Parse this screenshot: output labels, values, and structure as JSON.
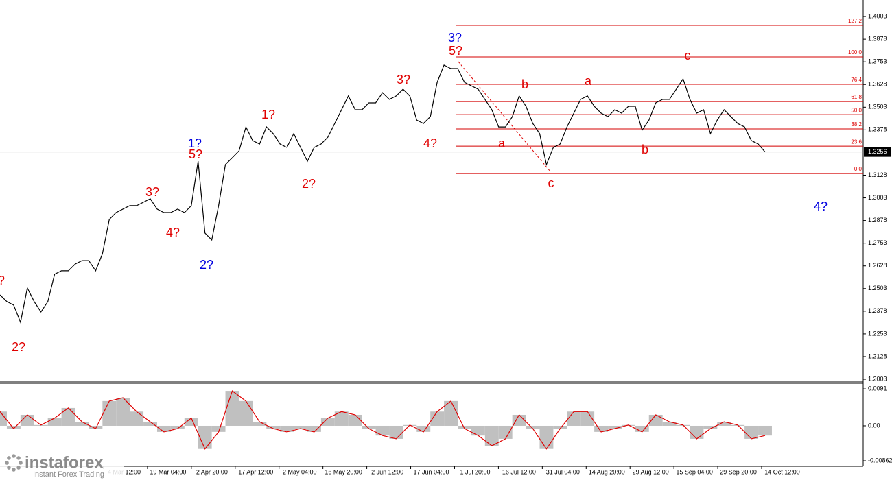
{
  "chart_data": [
    {
      "type": "line",
      "color": "#000000",
      "values": [
        1.2468,
        1.2431,
        1.2412,
        1.2317,
        1.2506,
        1.2431,
        1.2374,
        1.2431,
        1.2582,
        1.2601,
        1.2601,
        1.2638,
        1.2657,
        1.2657,
        1.2601,
        1.2695,
        1.2884,
        1.2922,
        1.2941,
        1.296,
        1.296,
        1.2979,
        1.2998,
        1.2941,
        1.2922,
        1.2922,
        1.2941,
        1.2922,
        1.296,
        1.3205,
        1.2809,
        1.2771,
        1.296,
        1.3187,
        1.3224,
        1.3262,
        1.3394,
        1.3319,
        1.33,
        1.3394,
        1.3357,
        1.33,
        1.3281,
        1.3357,
        1.3281,
        1.3205,
        1.3281,
        1.33,
        1.3338,
        1.3413,
        1.3489,
        1.3565,
        1.3489,
        1.3489,
        1.3527,
        1.3527,
        1.3583,
        1.3546,
        1.3565,
        1.3602,
        1.3565,
        1.3432,
        1.3413,
        1.3451,
        1.364,
        1.3735,
        1.3716,
        1.3716,
        1.364,
        1.3621,
        1.3602,
        1.3546,
        1.3489,
        1.3394,
        1.3394,
        1.3451,
        1.3565,
        1.3508,
        1.3413,
        1.3357,
        1.3187,
        1.3281,
        1.33,
        1.3394,
        1.347,
        1.3546,
        1.3565,
        1.3508,
        1.347,
        1.3451,
        1.3489,
        1.347,
        1.3508,
        1.3508,
        1.3376,
        1.3432,
        1.3527,
        1.3546,
        1.3546,
        1.3602,
        1.3659,
        1.3546,
        1.347,
        1.3489,
        1.3357,
        1.3432,
        1.3489,
        1.3451,
        1.3413,
        1.3394,
        1.3319,
        1.33,
        1.3256
      ],
      "ylim": [
        1.1988,
        1.4094
      ],
      "yticks": [
        1.4003,
        1.3878,
        1.3753,
        1.3628,
        1.3503,
        1.3378,
        1.3128,
        1.3003,
        1.2878,
        1.2753,
        1.2628,
        1.2503,
        1.2378,
        1.2253,
        1.2128,
        1.2003
      ],
      "current_price": 1.3256,
      "x_labels": [
        "4 Mar 12:00",
        "19 Mar 04:00",
        "2 Apr 20:00",
        "17 Apr 12:00",
        "2 May 04:00",
        "16 May 20:00",
        "2 Jun 12:00",
        "17 Jun 04:00",
        "1 Jul 20:00",
        "16 Jul 12:00",
        "31 Jul 04:00",
        "14 Aug 20:00",
        "29 Aug 12:00",
        "15 Sep 04:00",
        "29 Sep 20:00",
        "14 Oct 12:00"
      ],
      "fib_levels": [
        {
          "label": "127.2",
          "price": 1.3954
        },
        {
          "label": "100.0",
          "price": 1.378
        },
        {
          "label": "76.4",
          "price": 1.3629
        },
        {
          "label": "61.8",
          "price": 1.3534
        },
        {
          "label": "50.0",
          "price": 1.3462
        },
        {
          "label": "38.2",
          "price": 1.3383
        },
        {
          "label": "23.6",
          "price": 1.3288
        },
        {
          "label": "0.0",
          "price": 1.3137
        }
      ],
      "fib_color": "#d40000",
      "wave_labels": [
        {
          "text": "?",
          "color": "#e00000"
        },
        {
          "text": "2?",
          "color": "#e00000"
        },
        {
          "text": "1?",
          "color": "#0000e0"
        },
        {
          "text": "5?",
          "color": "#e00000"
        },
        {
          "text": "3?",
          "color": "#e00000"
        },
        {
          "text": "4?",
          "color": "#e00000"
        },
        {
          "text": "2?",
          "color": "#0000e0"
        },
        {
          "text": "1?",
          "color": "#e00000"
        },
        {
          "text": "2?",
          "color": "#e00000"
        },
        {
          "text": "3?",
          "color": "#e00000"
        },
        {
          "text": "4?",
          "color": "#e00000"
        },
        {
          "text": "3?",
          "color": "#0000e0"
        },
        {
          "text": "5?",
          "color": "#e00000"
        },
        {
          "text": "a",
          "color": "#e00000"
        },
        {
          "text": "b",
          "color": "#e00000"
        },
        {
          "text": "c",
          "color": "#e00000"
        },
        {
          "text": "a",
          "color": "#e00000"
        },
        {
          "text": "b",
          "color": "#e00000"
        },
        {
          "text": "c",
          "color": "#e00000"
        },
        {
          "text": "4?",
          "color": "#0000e0"
        }
      ],
      "watermark": "instaforex",
      "watermark_sub": "Instant Forex Trading"
    },
    {
      "type": "bar",
      "color": "#c0c0c0",
      "line_color": "#e00000",
      "values": [
        0.0035,
        -0.0007,
        0.0027,
        0.0002,
        0.0019,
        0.0044,
        0.001,
        -0.0007,
        0.0061,
        0.0069,
        0.0035,
        0.001,
        -0.0015,
        -0.0007,
        0.0019,
        -0.0057,
        -0.0015,
        0.0086,
        0.0061,
        0.001,
        -0.0007,
        -0.0015,
        -0.0007,
        -0.0015,
        0.0019,
        0.0035,
        0.0027,
        -0.0007,
        -0.0024,
        -0.0032,
        0.0002,
        -0.0015,
        0.0035,
        0.0061,
        -0.0007,
        -0.0024,
        -0.0049,
        -0.0032,
        0.0027,
        -0.0007,
        -0.0057,
        -0.0007,
        0.0035,
        0.0035,
        -0.0015,
        -0.0007,
        0.0002,
        -0.0015,
        0.0027,
        0.001,
        0.0002,
        -0.0032,
        -0.0007,
        0.001,
        0.0002,
        -0.0032,
        -0.0024
      ],
      "ylim": [
        -0.00997,
        0.0103
      ],
      "yticks": [
        0.0091,
        {
          "value": 0,
          "label": "0.00"
        },
        -0.00862
      ]
    }
  ]
}
